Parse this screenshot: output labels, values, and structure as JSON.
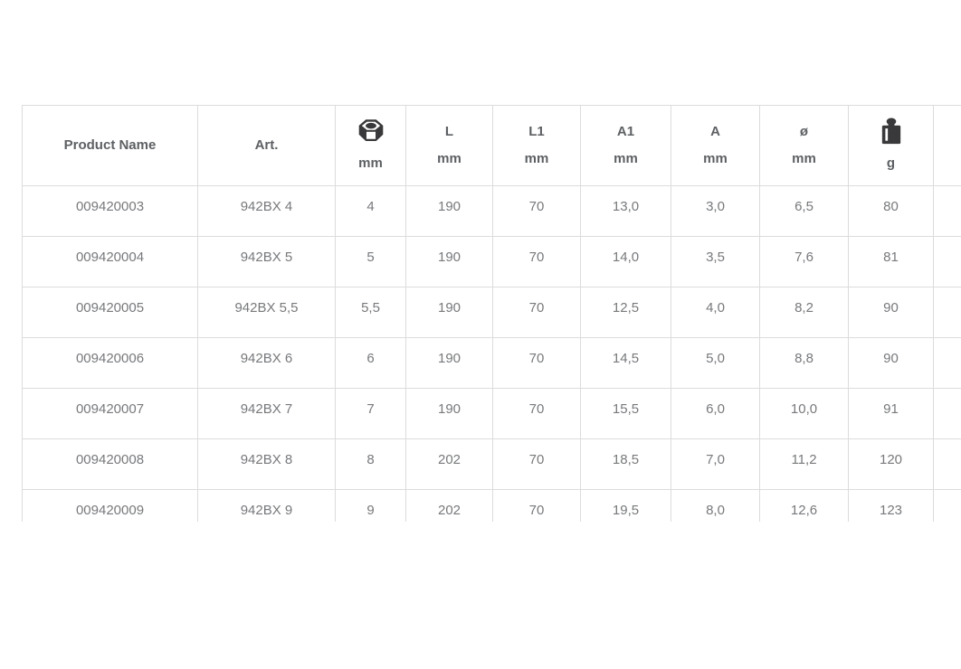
{
  "page": {
    "background": "#ffffff"
  },
  "table": {
    "colors": {
      "border": "#dcdcdc",
      "header_text": "#5d6063",
      "cell_text": "#77797c",
      "icon": "#39393b"
    },
    "columns": [
      {
        "key": "product_name",
        "label": "Product Name"
      },
      {
        "key": "art",
        "label": "Art."
      },
      {
        "key": "hex_size",
        "icon": "hex-nut-icon",
        "unit": "mm"
      },
      {
        "key": "l",
        "label": "L",
        "unit": "mm"
      },
      {
        "key": "l1",
        "label": "L1",
        "unit": "mm"
      },
      {
        "key": "a1",
        "label": "A1",
        "unit": "mm"
      },
      {
        "key": "a",
        "label": "A",
        "unit": "mm"
      },
      {
        "key": "diameter",
        "label": "ø",
        "unit": "mm"
      },
      {
        "key": "weight",
        "icon": "weight-icon",
        "unit": "g"
      }
    ],
    "rows": [
      [
        "009420003",
        "942BX 4",
        "4",
        "190",
        "70",
        "13,0",
        "3,0",
        "6,5",
        "80"
      ],
      [
        "009420004",
        "942BX 5",
        "5",
        "190",
        "70",
        "14,0",
        "3,5",
        "7,6",
        "81"
      ],
      [
        "009420005",
        "942BX 5,5",
        "5,5",
        "190",
        "70",
        "12,5",
        "4,0",
        "8,2",
        "90"
      ],
      [
        "009420006",
        "942BX 6",
        "6",
        "190",
        "70",
        "14,5",
        "5,0",
        "8,8",
        "90"
      ],
      [
        "009420007",
        "942BX 7",
        "7",
        "190",
        "70",
        "15,5",
        "6,0",
        "10,0",
        "91"
      ],
      [
        "009420008",
        "942BX 8",
        "8",
        "202",
        "70",
        "18,5",
        "7,0",
        "11,2",
        "120"
      ],
      [
        "009420009",
        "942BX 9",
        "9",
        "202",
        "70",
        "19,5",
        "8,0",
        "12,6",
        "123"
      ]
    ]
  }
}
